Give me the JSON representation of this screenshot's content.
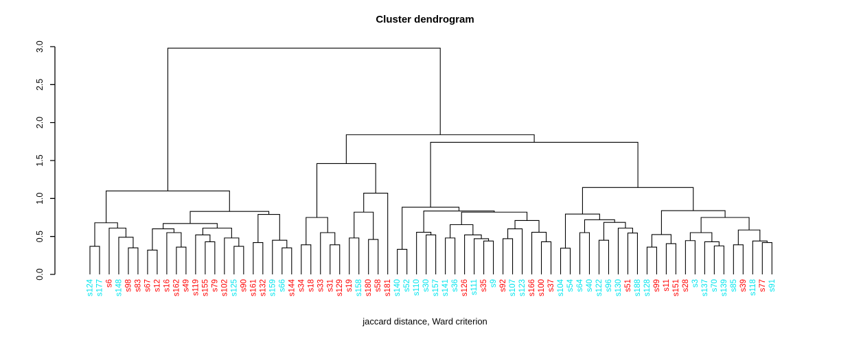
{
  "title": "Cluster dendrogram",
  "xlabel": "jaccard distance, Ward criterion",
  "chart_data": {
    "type": "dendrogram",
    "title": "Cluster dendrogram",
    "xlabel": "jaccard distance, Ward criterion",
    "ylabel": "",
    "ylim": [
      0,
      3
    ],
    "yticks": [
      "0.0",
      "0.5",
      "1.0",
      "1.5",
      "2.0",
      "2.5",
      "3.0"
    ],
    "grid": false,
    "line_color": "#000000",
    "label_colors": {
      "cyan": "#00E5EE",
      "red": "#FF0000"
    },
    "leaf_order": [
      "s124",
      "s177",
      "s6",
      "s148",
      "s98",
      "s83",
      "s67",
      "s12",
      "s16",
      "s162",
      "s49",
      "s119",
      "s155",
      "s79",
      "s102",
      "s125",
      "s90",
      "s161",
      "s132",
      "s159",
      "s66",
      "s144",
      "s34",
      "s18",
      "s33",
      "s31",
      "s129",
      "s19",
      "s158",
      "s180",
      "s58",
      "s181",
      "s140",
      "s52",
      "s110",
      "s30",
      "s157",
      "s141",
      "s36",
      "s126",
      "s111",
      "s35",
      "s9",
      "s92",
      "s107",
      "s123",
      "s166",
      "s100",
      "s37",
      "s104",
      "s54",
      "s64",
      "s40",
      "s122",
      "s96",
      "s130",
      "s51",
      "s188",
      "s128",
      "s99",
      "s11",
      "s151",
      "s28",
      "s3",
      "s137",
      "s70",
      "s139",
      "s85",
      "s39",
      "s118",
      "s77",
      "s91"
    ],
    "cyan_leaves": [
      "s124",
      "s177",
      "s148",
      "s125",
      "s159",
      "s66",
      "s158",
      "s140",
      "s52",
      "s110",
      "s30",
      "s157",
      "s141",
      "s36",
      "s111",
      "s9",
      "s107",
      "s123",
      "s104",
      "s54",
      "s64",
      "s40",
      "s122",
      "s96",
      "s130",
      "s188",
      "s128",
      "s3",
      "s137",
      "s70",
      "s139",
      "s85",
      "s118",
      "s91"
    ],
    "tree": [
      2.98,
      [
        1.1,
        [
          0.68,
          [
            0.37,
            "s124",
            "s177"
          ],
          [
            0.61,
            "s6",
            [
              0.49,
              "s148",
              [
                0.35,
                "s98",
                "s83"
              ]
            ]
          ]
        ],
        [
          0.83,
          [
            0.67,
            [
              0.6,
              [
                0.32,
                "s67",
                "s12"
              ],
              [
                0.55,
                "s16",
                [
                  0.36,
                  "s162",
                  "s49"
                ]
              ]
            ],
            [
              0.61,
              [
                0.52,
                "s119",
                [
                  0.43,
                  "s155",
                  "s79"
                ]
              ],
              [
                0.48,
                "s102",
                [
                  0.37,
                  "s125",
                  "s90"
                ]
              ]
            ]
          ],
          [
            0.79,
            [
              0.42,
              "s161",
              "s132"
            ],
            [
              0.45,
              "s159",
              [
                0.35,
                "s66",
                "s144"
              ]
            ]
          ]
        ]
      ],
      [
        1.84,
        [
          1.46,
          [
            0.75,
            [
              0.39,
              "s34",
              "s18"
            ],
            [
              0.55,
              "s33",
              [
                0.39,
                "s31",
                "s129"
              ]
            ]
          ],
          [
            1.07,
            [
              0.82,
              [
                0.48,
                "s19",
                "s158"
              ],
              [
                0.46,
                "s180",
                "s58"
              ]
            ],
            "s181"
          ]
        ],
        [
          1.74,
          [
            0.885,
            [
              0.33,
              "s140",
              "s52"
            ],
            [
              0.835,
              [
                0.555,
                "s110",
                [
                  0.52,
                  "s30",
                  "s157"
                ]
              ],
              [
                0.82,
                [
                  0.655,
                  [
                    0.48,
                    "s141",
                    "s36"
                  ],
                  [
                    0.52,
                    "s126",
                    [
                      0.47,
                      "s111",
                      [
                        0.44,
                        "s35",
                        "s9"
                      ]
                    ]
                  ]
                ],
                [
                  0.71,
                  [
                    0.6,
                    [
                      0.47,
                      "s92",
                      "s107"
                    ],
                    "s123"
                  ],
                  [
                    0.555,
                    "s166",
                    [
                      0.43,
                      "s100",
                      "s37"
                    ]
                  ]
                ]
              ]
            ]
          ],
          [
            1.145,
            [
              0.795,
              [
                0.345,
                "s104",
                "s54"
              ],
              [
                0.72,
                [
                  0.55,
                  "s64",
                  "s40"
                ],
                [
                  0.685,
                  [
                    0.45,
                    "s122",
                    "s96"
                  ],
                  [
                    0.61,
                    "s130",
                    [
                      0.545,
                      "s51",
                      "s188"
                    ]
                  ]
                ]
              ]
            ],
            [
              0.84,
              [
                0.525,
                [
                  0.36,
                  "s128",
                  "s99"
                ],
                [
                  0.405,
                  "s11",
                  "s151"
                ]
              ],
              [
                0.75,
                [
                  0.55,
                  [
                    0.445,
                    "s28",
                    "s3"
                  ],
                  [
                    0.43,
                    "s137",
                    [
                      0.375,
                      "s70",
                      "s139"
                    ]
                  ]
                ],
                [
                  0.585,
                  [
                    0.39,
                    "s85",
                    "s39"
                  ],
                  [
                    0.44,
                    "s118",
                    [
                      0.42,
                      "s77",
                      "s91"
                    ]
                  ]
                ]
              ]
            ]
          ]
        ]
      ]
    ]
  }
}
